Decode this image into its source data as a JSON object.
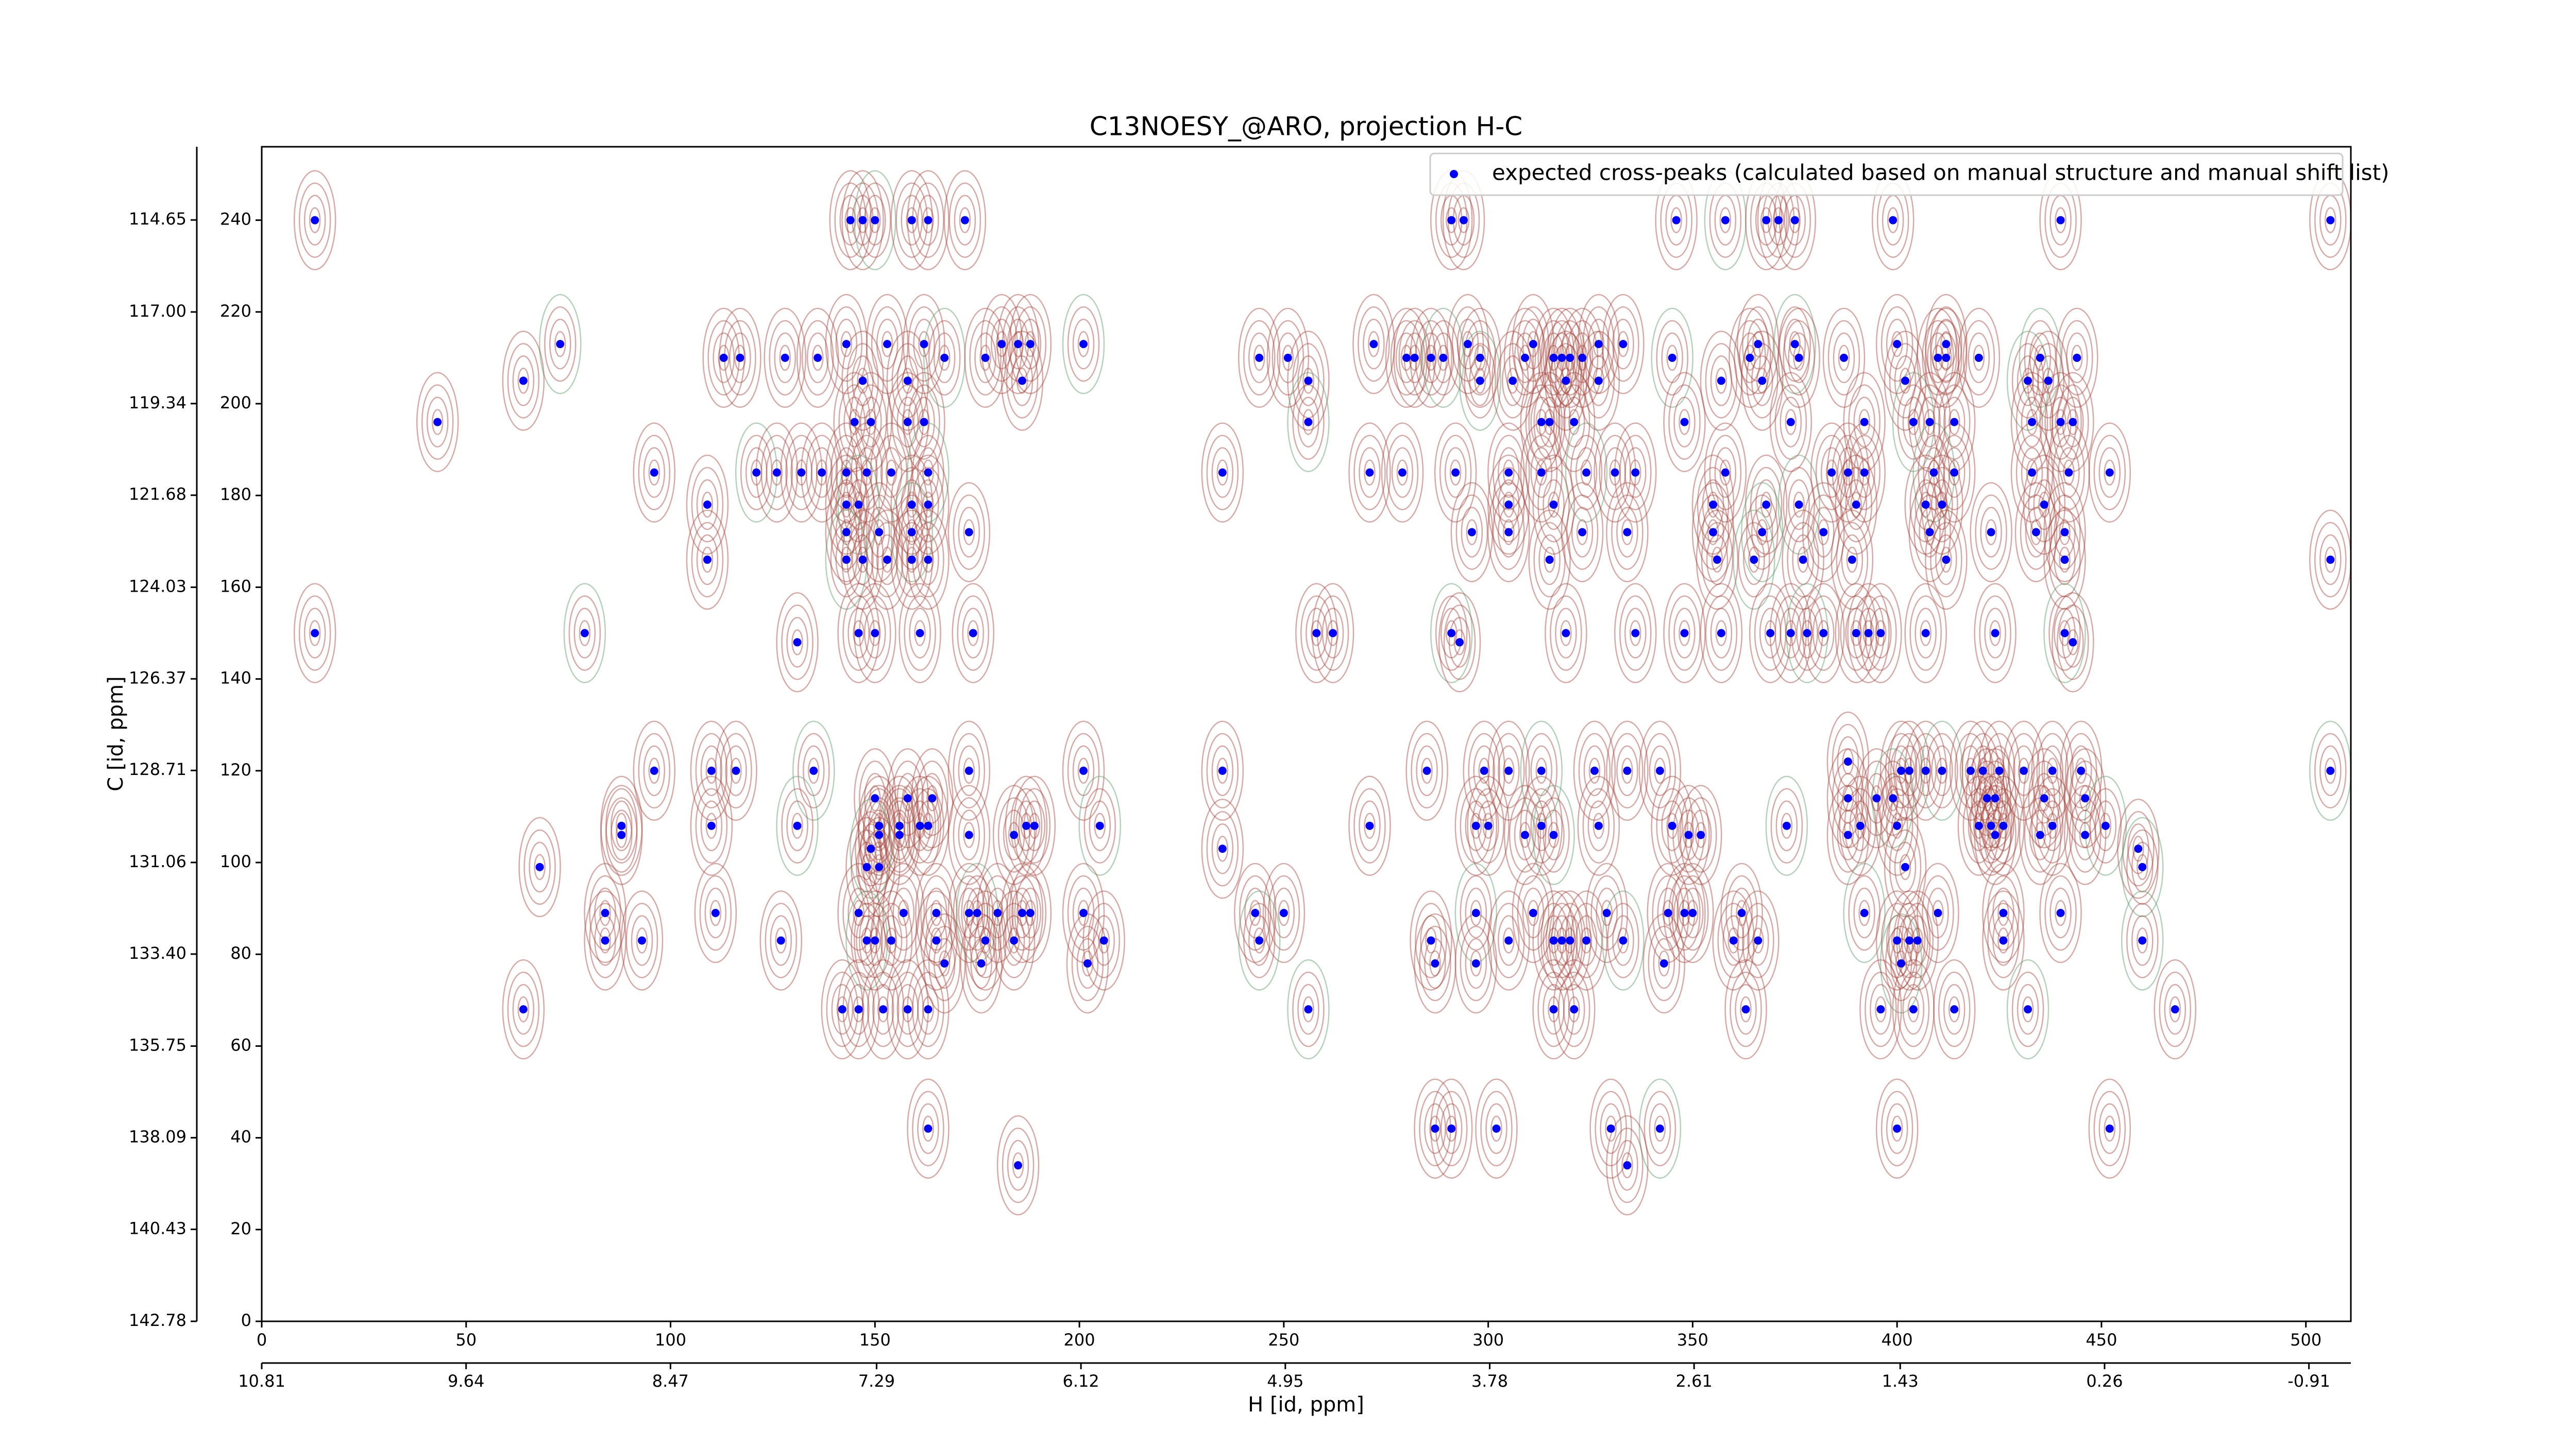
{
  "chart_data": {
    "type": "scatter",
    "title": "C13NOESY_@ARO, projection H-C",
    "x_label": "H [id, ppm]",
    "y_label": "C [id, ppm]",
    "xlim": [
      0,
      511
    ],
    "ylim": [
      0,
      256
    ],
    "xticks": [
      0,
      50,
      100,
      150,
      200,
      250,
      300,
      350,
      400,
      450,
      500
    ],
    "yticks": [
      0,
      20,
      40,
      60,
      80,
      100,
      120,
      140,
      160,
      180,
      200,
      220,
      240
    ],
    "x2lim": [
      10.81,
      -1.15
    ],
    "x2ticks": [
      10.81,
      9.64,
      8.47,
      7.29,
      6.12,
      4.95,
      3.78,
      2.61,
      1.43,
      0.26,
      -0.91
    ],
    "y2lim": [
      142.78,
      112.78
    ],
    "y2ticks": [
      {
        "value": 114.65,
        "label": "114.65"
      },
      {
        "value": 117,
        "label": "117.00"
      },
      119.34,
      121.68,
      124.03,
      126.37,
      128.71,
      131.06,
      {
        "value": 133.4,
        "label": "133.40"
      },
      135.75,
      138.09,
      140.43,
      142.78
    ],
    "legend": "upper right",
    "series": [
      {
        "name": "expected cross-peaks (calculated based on manual structure and manual shift list)",
        "color": "#0000ff",
        "x": [
          13,
          144,
          147,
          150,
          159,
          163,
          172,
          291,
          294,
          346,
          358,
          368,
          371,
          375,
          399,
          440,
          506,
          73,
          143,
          153,
          162,
          181,
          185,
          188,
          201,
          272,
          295,
          311,
          327,
          333,
          366,
          375,
          400,
          412,
          113,
          117,
          128,
          136,
          167,
          177,
          244,
          251,
          280,
          282,
          286,
          289,
          298,
          309,
          316,
          318,
          320,
          323,
          345,
          364,
          376,
          387,
          410,
          412,
          420,
          435,
          444,
          64,
          147,
          158,
          186,
          256,
          298,
          306,
          319,
          327,
          357,
          367,
          402,
          432,
          437,
          43,
          145,
          149,
          158,
          162,
          256,
          313,
          315,
          321,
          348,
          374,
          392,
          404,
          408,
          414,
          433,
          440,
          443,
          96,
          121,
          126,
          132,
          137,
          143,
          148,
          154,
          163,
          235,
          271,
          279,
          292,
          305,
          313,
          324,
          331,
          336,
          358,
          384,
          388,
          392,
          409,
          414,
          433,
          442,
          452,
          109,
          143,
          146,
          159,
          163,
          305,
          316,
          355,
          368,
          376,
          390,
          407,
          411,
          436,
          143,
          151,
          159,
          173,
          296,
          305,
          323,
          334,
          355,
          367,
          382,
          408,
          423,
          434,
          441,
          109,
          143,
          147,
          153,
          159,
          163,
          315,
          356,
          365,
          377,
          389,
          412,
          441,
          506,
          13,
          79,
          146,
          150,
          161,
          174,
          258,
          262,
          291,
          319,
          336,
          348,
          357,
          369,
          374,
          378,
          382,
          390,
          393,
          396,
          407,
          424,
          441,
          131,
          293,
          443,
          96,
          110,
          116,
          135,
          173,
          201,
          235,
          285,
          299,
          305,
          313,
          326,
          334,
          342,
          401,
          403,
          407,
          411,
          418,
          421,
          425,
          431,
          438,
          445,
          506,
          388,
          150,
          158,
          164,
          388,
          395,
          399,
          422,
          424,
          436,
          446,
          88,
          110,
          131,
          151,
          156,
          161,
          163,
          187,
          189,
          205,
          271,
          297,
          300,
          313,
          327,
          345,
          373,
          391,
          400,
          420,
          423,
          426,
          438,
          451,
          88,
          151,
          156,
          173,
          184,
          309,
          316,
          349,
          352,
          388,
          424,
          435,
          446,
          149,
          235,
          459,
          68,
          148,
          151,
          402,
          460,
          84,
          111,
          146,
          157,
          165,
          173,
          175,
          180,
          186,
          188,
          201,
          243,
          250,
          297,
          311,
          329,
          344,
          348,
          350,
          362,
          392,
          410,
          426,
          440,
          84,
          93,
          127,
          148,
          150,
          154,
          165,
          177,
          184,
          206,
          244,
          286,
          305,
          316,
          318,
          320,
          324,
          333,
          360,
          366,
          400,
          403,
          405,
          426,
          460,
          167,
          176,
          202,
          287,
          297,
          343,
          401,
          64,
          142,
          146,
          152,
          158,
          163,
          256,
          316,
          321,
          363,
          396,
          404,
          414,
          432,
          468,
          163,
          287,
          291,
          302,
          330,
          342,
          400,
          452,
          185,
          334
        ],
        "y": [
          240,
          240,
          240,
          240,
          240,
          240,
          240,
          240,
          240,
          240,
          240,
          240,
          240,
          240,
          240,
          240,
          240,
          213,
          213,
          213,
          213,
          213,
          213,
          213,
          213,
          213,
          213,
          213,
          213,
          213,
          213,
          213,
          213,
          213,
          210,
          210,
          210,
          210,
          210,
          210,
          210,
          210,
          210,
          210,
          210,
          210,
          210,
          210,
          210,
          210,
          210,
          210,
          210,
          210,
          210,
          210,
          210,
          210,
          210,
          210,
          210,
          205,
          205,
          205,
          205,
          205,
          205,
          205,
          205,
          205,
          205,
          205,
          205,
          205,
          205,
          196,
          196,
          196,
          196,
          196,
          196,
          196,
          196,
          196,
          196,
          196,
          196,
          196,
          196,
          196,
          196,
          196,
          196,
          185,
          185,
          185,
          185,
          185,
          185,
          185,
          185,
          185,
          185,
          185,
          185,
          185,
          185,
          185,
          185,
          185,
          185,
          185,
          185,
          185,
          185,
          185,
          185,
          185,
          185,
          185,
          178,
          178,
          178,
          178,
          178,
          178,
          178,
          178,
          178,
          178,
          178,
          178,
          178,
          178,
          172,
          172,
          172,
          172,
          172,
          172,
          172,
          172,
          172,
          172,
          172,
          172,
          172,
          172,
          172,
          166,
          166,
          166,
          166,
          166,
          166,
          166,
          166,
          166,
          166,
          166,
          166,
          166,
          166,
          150,
          150,
          150,
          150,
          150,
          150,
          150,
          150,
          150,
          150,
          150,
          150,
          150,
          150,
          150,
          150,
          150,
          150,
          150,
          150,
          150,
          150,
          150,
          148,
          148,
          148,
          120,
          120,
          120,
          120,
          120,
          120,
          120,
          120,
          120,
          120,
          120,
          120,
          120,
          120,
          120,
          120,
          120,
          120,
          120,
          120,
          120,
          120,
          120,
          120,
          120,
          122,
          114,
          114,
          114,
          114,
          114,
          114,
          114,
          114,
          114,
          114,
          108,
          108,
          108,
          108,
          108,
          108,
          108,
          108,
          108,
          108,
          108,
          108,
          108,
          108,
          108,
          108,
          108,
          108,
          108,
          108,
          108,
          108,
          108,
          108,
          106,
          106,
          106,
          106,
          106,
          106,
          106,
          106,
          106,
          106,
          106,
          106,
          106,
          103,
          103,
          103,
          99,
          99,
          99,
          99,
          99,
          89,
          89,
          89,
          89,
          89,
          89,
          89,
          89,
          89,
          89,
          89,
          89,
          89,
          89,
          89,
          89,
          89,
          89,
          89,
          89,
          89,
          89,
          89,
          89,
          83,
          83,
          83,
          83,
          83,
          83,
          83,
          83,
          83,
          83,
          83,
          83,
          83,
          83,
          83,
          83,
          83,
          83,
          83,
          83,
          83,
          83,
          83,
          83,
          83,
          78,
          78,
          78,
          78,
          78,
          78,
          78,
          68,
          68,
          68,
          68,
          68,
          68,
          68,
          68,
          68,
          68,
          68,
          68,
          68,
          68,
          68,
          42,
          42,
          42,
          42,
          42,
          42,
          42,
          42,
          34,
          34
        ]
      }
    ]
  }
}
